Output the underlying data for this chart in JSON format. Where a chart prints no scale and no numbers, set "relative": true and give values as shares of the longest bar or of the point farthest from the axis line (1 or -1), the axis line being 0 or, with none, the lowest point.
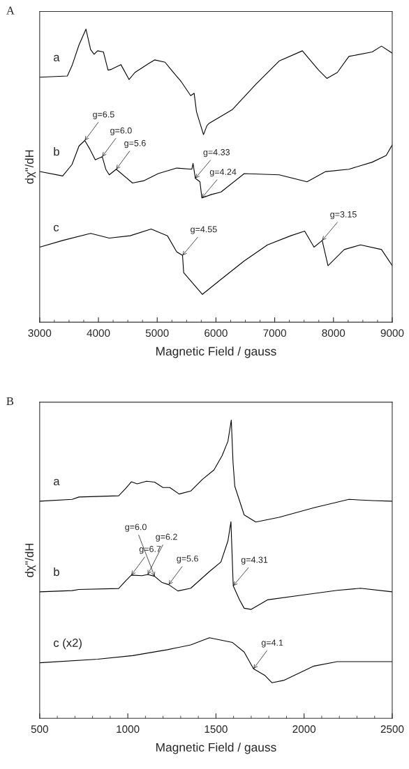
{
  "chart_data": [
    {
      "type": "line",
      "title": "A",
      "xlabel": "Magnetic Field / gauss",
      "ylabel": "dχ\"/dH",
      "relative": true,
      "grid": false,
      "legend": false,
      "marker": "none",
      "line_style": "solid",
      "xlim": [
        3000,
        9000
      ],
      "xticks": [
        3000,
        {
          "value": 3250,
          "label": null
        },
        {
          "value": 3500,
          "label": null
        },
        {
          "value": 3750,
          "label": null
        },
        4000,
        {
          "value": 4250,
          "label": null
        },
        {
          "value": 4500,
          "label": null
        },
        {
          "value": 4750,
          "label": null
        },
        5000,
        {
          "value": 5250,
          "label": null
        },
        {
          "value": 5500,
          "label": null
        },
        {
          "value": 5750,
          "label": null
        },
        6000,
        {
          "value": 6250,
          "label": null
        },
        {
          "value": 6500,
          "label": null
        },
        {
          "value": 6750,
          "label": null
        },
        7000,
        {
          "value": 7250,
          "label": null
        },
        {
          "value": 7500,
          "label": null
        },
        {
          "value": 7750,
          "label": null
        },
        8000,
        {
          "value": 8250,
          "label": null
        },
        {
          "value": 8500,
          "label": null
        },
        {
          "value": 8750,
          "label": null
        },
        9000
      ],
      "tick_labels": "x",
      "series": [
        {
          "name": "a",
          "color": "#000000",
          "x": [
            3000,
            3471,
            3550,
            3669,
            3788,
            3867,
            3927,
            3986,
            4085,
            4164,
            4224,
            4382,
            4521,
            4620,
            4857,
            4956,
            5134,
            5214,
            5412,
            5570,
            5629,
            5669,
            5788,
            5847,
            5887,
            6283,
            6679,
            7075,
            7471,
            7550,
            7748,
            7887,
            8065,
            8263,
            8659,
            8817,
            9000
          ],
          "values": [
            0.836,
            0.84,
            0.875,
            0.946,
            1.0,
            0.93,
            0.914,
            0.926,
            0.922,
            0.86,
            0.863,
            0.879,
            0.828,
            0.852,
            0.883,
            0.895,
            0.887,
            0.867,
            0.82,
            0.773,
            0.781,
            0.718,
            0.64,
            0.671,
            0.679,
            0.726,
            0.812,
            0.891,
            0.926,
            0.907,
            0.86,
            0.832,
            0.852,
            0.907,
            0.922,
            0.942,
            0.918
          ]
        },
        {
          "name": "b",
          "color": "#000000",
          "x": [
            3000,
            3392,
            3550,
            3669,
            3768,
            3847,
            3946,
            4065,
            4125,
            4184,
            4303,
            4580,
            4778,
            5016,
            5332,
            5590,
            5610,
            5649,
            5728,
            5760,
            5926,
            6085,
            6481,
            7075,
            7550,
            7867,
            8263,
            8659,
            8897,
            9000
          ],
          "values": [
            0.514,
            0.499,
            0.538,
            0.601,
            0.62,
            0.593,
            0.554,
            0.565,
            0.522,
            0.503,
            0.522,
            0.475,
            0.483,
            0.507,
            0.526,
            0.522,
            0.542,
            0.491,
            0.479,
            0.424,
            0.436,
            0.444,
            0.507,
            0.503,
            0.479,
            0.514,
            0.522,
            0.546,
            0.569,
            0.605
          ]
        },
        {
          "name": "c",
          "color": "#000000",
          "x": [
            3000,
            3392,
            3867,
            4184,
            4540,
            4897,
            5174,
            5332,
            5431,
            5451,
            5768,
            6085,
            6481,
            6877,
            7273,
            7510,
            7669,
            7808,
            7907,
            8184,
            8461,
            8817,
            9000
          ],
          "values": [
            0.256,
            0.279,
            0.303,
            0.287,
            0.295,
            0.318,
            0.295,
            0.24,
            0.228,
            0.169,
            0.095,
            0.146,
            0.209,
            0.264,
            0.295,
            0.311,
            0.256,
            0.279,
            0.193,
            0.248,
            0.264,
            0.248,
            0.193
          ]
        }
      ],
      "annotations": [
        {
          "text": "g=6.5",
          "x": 3768,
          "y": 0.62
        },
        {
          "text": "g=6.0",
          "x": 4065,
          "y": 0.565
        },
        {
          "text": "g=5.6",
          "x": 4303,
          "y": 0.522
        },
        {
          "text": "g=4.33",
          "x": 5649,
          "y": 0.491
        },
        {
          "text": "g=4.24",
          "x": 5760,
          "y": 0.424
        },
        {
          "text": "g=4.55",
          "x": 5431,
          "y": 0.228
        },
        {
          "text": "g=3.15",
          "x": 7808,
          "y": 0.279
        }
      ]
    },
    {
      "type": "line",
      "title": "B",
      "xlabel": "Magnetic Field / gauss",
      "ylabel": "dχ\"/dH",
      "relative": true,
      "grid": false,
      "legend": false,
      "marker": "none",
      "line_style": "solid",
      "xlim": [
        500,
        2500
      ],
      "xticks": [
        500,
        {
          "value": 600,
          "label": null
        },
        {
          "value": 700,
          "label": null
        },
        {
          "value": 800,
          "label": null
        },
        {
          "value": 900,
          "label": null
        },
        1000,
        {
          "value": 1100,
          "label": null
        },
        {
          "value": 1200,
          "label": null
        },
        {
          "value": 1300,
          "label": null
        },
        {
          "value": 1400,
          "label": null
        },
        1500,
        {
          "value": 1600,
          "label": null
        },
        {
          "value": 1700,
          "label": null
        },
        {
          "value": 1800,
          "label": null
        },
        {
          "value": 1900,
          "label": null
        },
        2000,
        {
          "value": 2100,
          "label": null
        },
        {
          "value": 2200,
          "label": null
        },
        {
          "value": 2300,
          "label": null
        },
        {
          "value": 2400,
          "label": null
        },
        2500
      ],
      "tick_labels": "x",
      "series": [
        {
          "name": "a",
          "color": "#000000",
          "x": [
            500,
            684,
            723,
            948,
            987,
            1020,
            1053,
            1106,
            1152,
            1199,
            1238,
            1291,
            1357,
            1423,
            1489,
            1535,
            1568,
            1587,
            1597,
            1607,
            1660,
            1726,
            1858,
            2056,
            2254,
            2386,
            2500
          ],
          "values": [
            0.728,
            0.734,
            0.742,
            0.746,
            0.77,
            0.793,
            0.786,
            0.795,
            0.792,
            0.774,
            0.774,
            0.752,
            0.762,
            0.801,
            0.833,
            0.881,
            0.929,
            1.0,
            0.857,
            0.778,
            0.682,
            0.658,
            0.674,
            0.706,
            0.734,
            0.73,
            0.728
          ]
        },
        {
          "name": "b",
          "color": "#000000",
          "x": [
            500,
            684,
            723,
            948,
            987,
            1020,
            1080,
            1113,
            1152,
            1192,
            1232,
            1284,
            1357,
            1463,
            1528,
            1568,
            1585,
            1598,
            1634,
            1660,
            1700,
            1792,
            1990,
            2188,
            2320,
            2500
          ],
          "values": [
            0.424,
            0.428,
            0.432,
            0.435,
            0.46,
            0.48,
            0.478,
            0.482,
            0.476,
            0.456,
            0.448,
            0.427,
            0.436,
            0.492,
            0.524,
            0.595,
            0.659,
            0.444,
            0.397,
            0.369,
            0.365,
            0.397,
            0.413,
            0.429,
            0.436,
            0.424
          ]
        },
        {
          "name": "c (x2)",
          "color": "#000000",
          "x": [
            500,
            829,
            1027,
            1225,
            1357,
            1463,
            1594,
            1660,
            1713,
            1779,
            1818,
            1884,
            2056,
            2188,
            2500
          ],
          "values": [
            0.186,
            0.198,
            0.21,
            0.23,
            0.246,
            0.27,
            0.254,
            0.222,
            0.166,
            0.143,
            0.119,
            0.127,
            0.175,
            0.19,
            0.19
          ]
        }
      ],
      "annotations": [
        {
          "text": "g=6.7",
          "x": 1020,
          "y": 0.48
        },
        {
          "text": "g=6.2",
          "x": 1113,
          "y": 0.482
        },
        {
          "text": "g=6.0",
          "x": 1152,
          "y": 0.476
        },
        {
          "text": "g=5.6",
          "x": 1232,
          "y": 0.448
        },
        {
          "text": "g=4.31",
          "x": 1598,
          "y": 0.444
        },
        {
          "text": "g=4.1",
          "x": 1713,
          "y": 0.166
        }
      ]
    }
  ]
}
